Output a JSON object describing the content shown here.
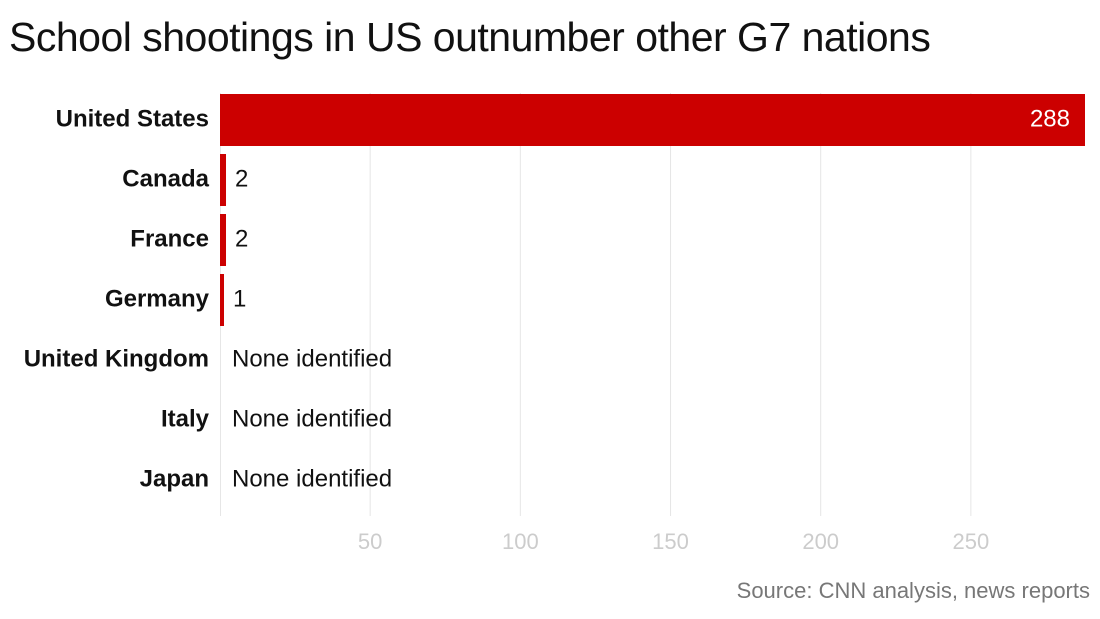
{
  "title": "School shootings in US outnumber other G7 nations",
  "source": "Source: CNN analysis, news reports",
  "bar_color": "#cc0000",
  "grid_color": "#e6e6e6",
  "chart_data": {
    "type": "bar",
    "orientation": "horizontal",
    "title": "School shootings in US outnumber other G7 nations",
    "categories": [
      "United States",
      "Canada",
      "France",
      "Germany",
      "United Kingdom",
      "Italy",
      "Japan"
    ],
    "values": [
      288,
      2,
      2,
      1,
      0,
      0,
      0
    ],
    "value_labels": [
      "288",
      "2",
      "2",
      "1",
      "None identified",
      "None identified",
      "None identified"
    ],
    "xlim": [
      0,
      289
    ],
    "xticks": [
      50,
      100,
      150,
      200,
      250
    ],
    "xlabel": "",
    "ylabel": "",
    "grid": true,
    "legend": "none"
  }
}
